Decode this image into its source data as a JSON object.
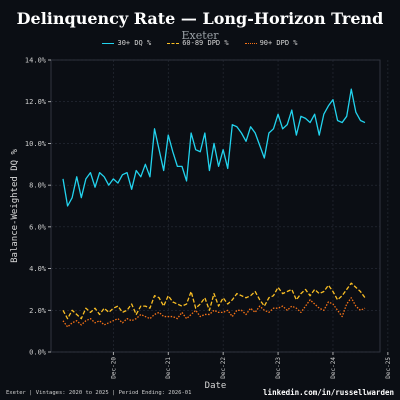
{
  "chart_data": {
    "type": "line",
    "title": "Delinquency Rate — Long-Horizon Trend",
    "subtitle": "Exeter",
    "xlabel": "Date",
    "ylabel": "Balance-Weighted DQ %",
    "ylim": [
      0,
      14
    ],
    "yticks": [
      "0.0%",
      "2.0%",
      "4.0%",
      "6.0%",
      "8.0%",
      "10.0%",
      "12.0%",
      "14.0%"
    ],
    "xticks": [
      "Dec-20",
      "Dec-21",
      "Dec-22",
      "Dec-23",
      "Dec-24",
      "Dec-25"
    ],
    "grid": true,
    "legend": "top-center",
    "x_start": "2020-01",
    "series": [
      {
        "name": "30+ DQ %",
        "color": "#22d3ee",
        "dash": "solid",
        "values": [
          8.3,
          7.0,
          7.4,
          8.4,
          7.4,
          8.3,
          8.6,
          7.9,
          8.6,
          8.4,
          8.0,
          8.3,
          8.1,
          8.5,
          8.6,
          7.8,
          8.7,
          8.4,
          9.0,
          8.4,
          10.7,
          9.7,
          8.7,
          10.4,
          9.6,
          8.9,
          8.9,
          8.2,
          10.5,
          9.7,
          9.6,
          10.5,
          8.7,
          10.0,
          8.9,
          9.7,
          8.8,
          10.9,
          10.8,
          10.5,
          10.1,
          10.8,
          10.5,
          9.9,
          9.3,
          10.5,
          10.7,
          11.4,
          10.7,
          10.9,
          11.6,
          10.4,
          11.3,
          11.2,
          11.0,
          11.4,
          10.4,
          11.4,
          11.8,
          12.1,
          11.1,
          11.0,
          11.3,
          12.6,
          11.5,
          11.1,
          11.0
        ]
      },
      {
        "name": "60-89 DPD %",
        "color": "#fbbf24",
        "dash": "4,2",
        "values": [
          2.0,
          1.6,
          2.0,
          1.8,
          1.6,
          2.1,
          1.9,
          2.1,
          1.8,
          2.1,
          1.9,
          2.1,
          2.2,
          1.9,
          2.0,
          2.3,
          1.8,
          2.2,
          2.2,
          2.1,
          2.7,
          2.6,
          2.2,
          2.7,
          2.4,
          2.3,
          2.2,
          2.3,
          2.9,
          2.1,
          2.3,
          2.6,
          2.0,
          2.8,
          2.2,
          2.6,
          2.3,
          2.5,
          2.8,
          2.7,
          2.6,
          2.7,
          2.9,
          2.5,
          2.2,
          2.6,
          2.7,
          3.1,
          2.8,
          2.9,
          3.0,
          2.5,
          2.8,
          3.0,
          2.7,
          3.0,
          2.8,
          2.9,
          3.2,
          2.9,
          2.5,
          2.7,
          3.0,
          3.3,
          3.1,
          2.9,
          2.6
        ]
      },
      {
        "name": "90+ DPD %",
        "color": "#f97316",
        "dash": "1.5,1.5",
        "values": [
          1.5,
          1.2,
          1.4,
          1.5,
          1.3,
          1.5,
          1.6,
          1.4,
          1.5,
          1.3,
          1.4,
          1.5,
          1.6,
          1.4,
          1.6,
          1.5,
          1.6,
          1.8,
          1.7,
          1.6,
          1.8,
          1.9,
          1.7,
          1.7,
          1.7,
          1.6,
          1.9,
          1.6,
          1.8,
          2.0,
          1.7,
          1.8,
          1.8,
          2.0,
          1.9,
          1.9,
          2.0,
          1.7,
          2.0,
          2.0,
          1.8,
          2.1,
          1.9,
          2.2,
          2.0,
          1.9,
          2.1,
          2.1,
          2.2,
          2.0,
          2.2,
          2.1,
          1.9,
          2.2,
          2.5,
          2.3,
          2.1,
          2.0,
          2.4,
          2.3,
          2.0,
          1.7,
          2.3,
          2.6,
          2.2,
          2.0,
          2.1
        ]
      }
    ]
  },
  "footer": {
    "left": "Exeter | Vintages: 2020 to 2025 | Period Ending: 2026-01",
    "right": "linkedin.com/in/russellwarden"
  }
}
